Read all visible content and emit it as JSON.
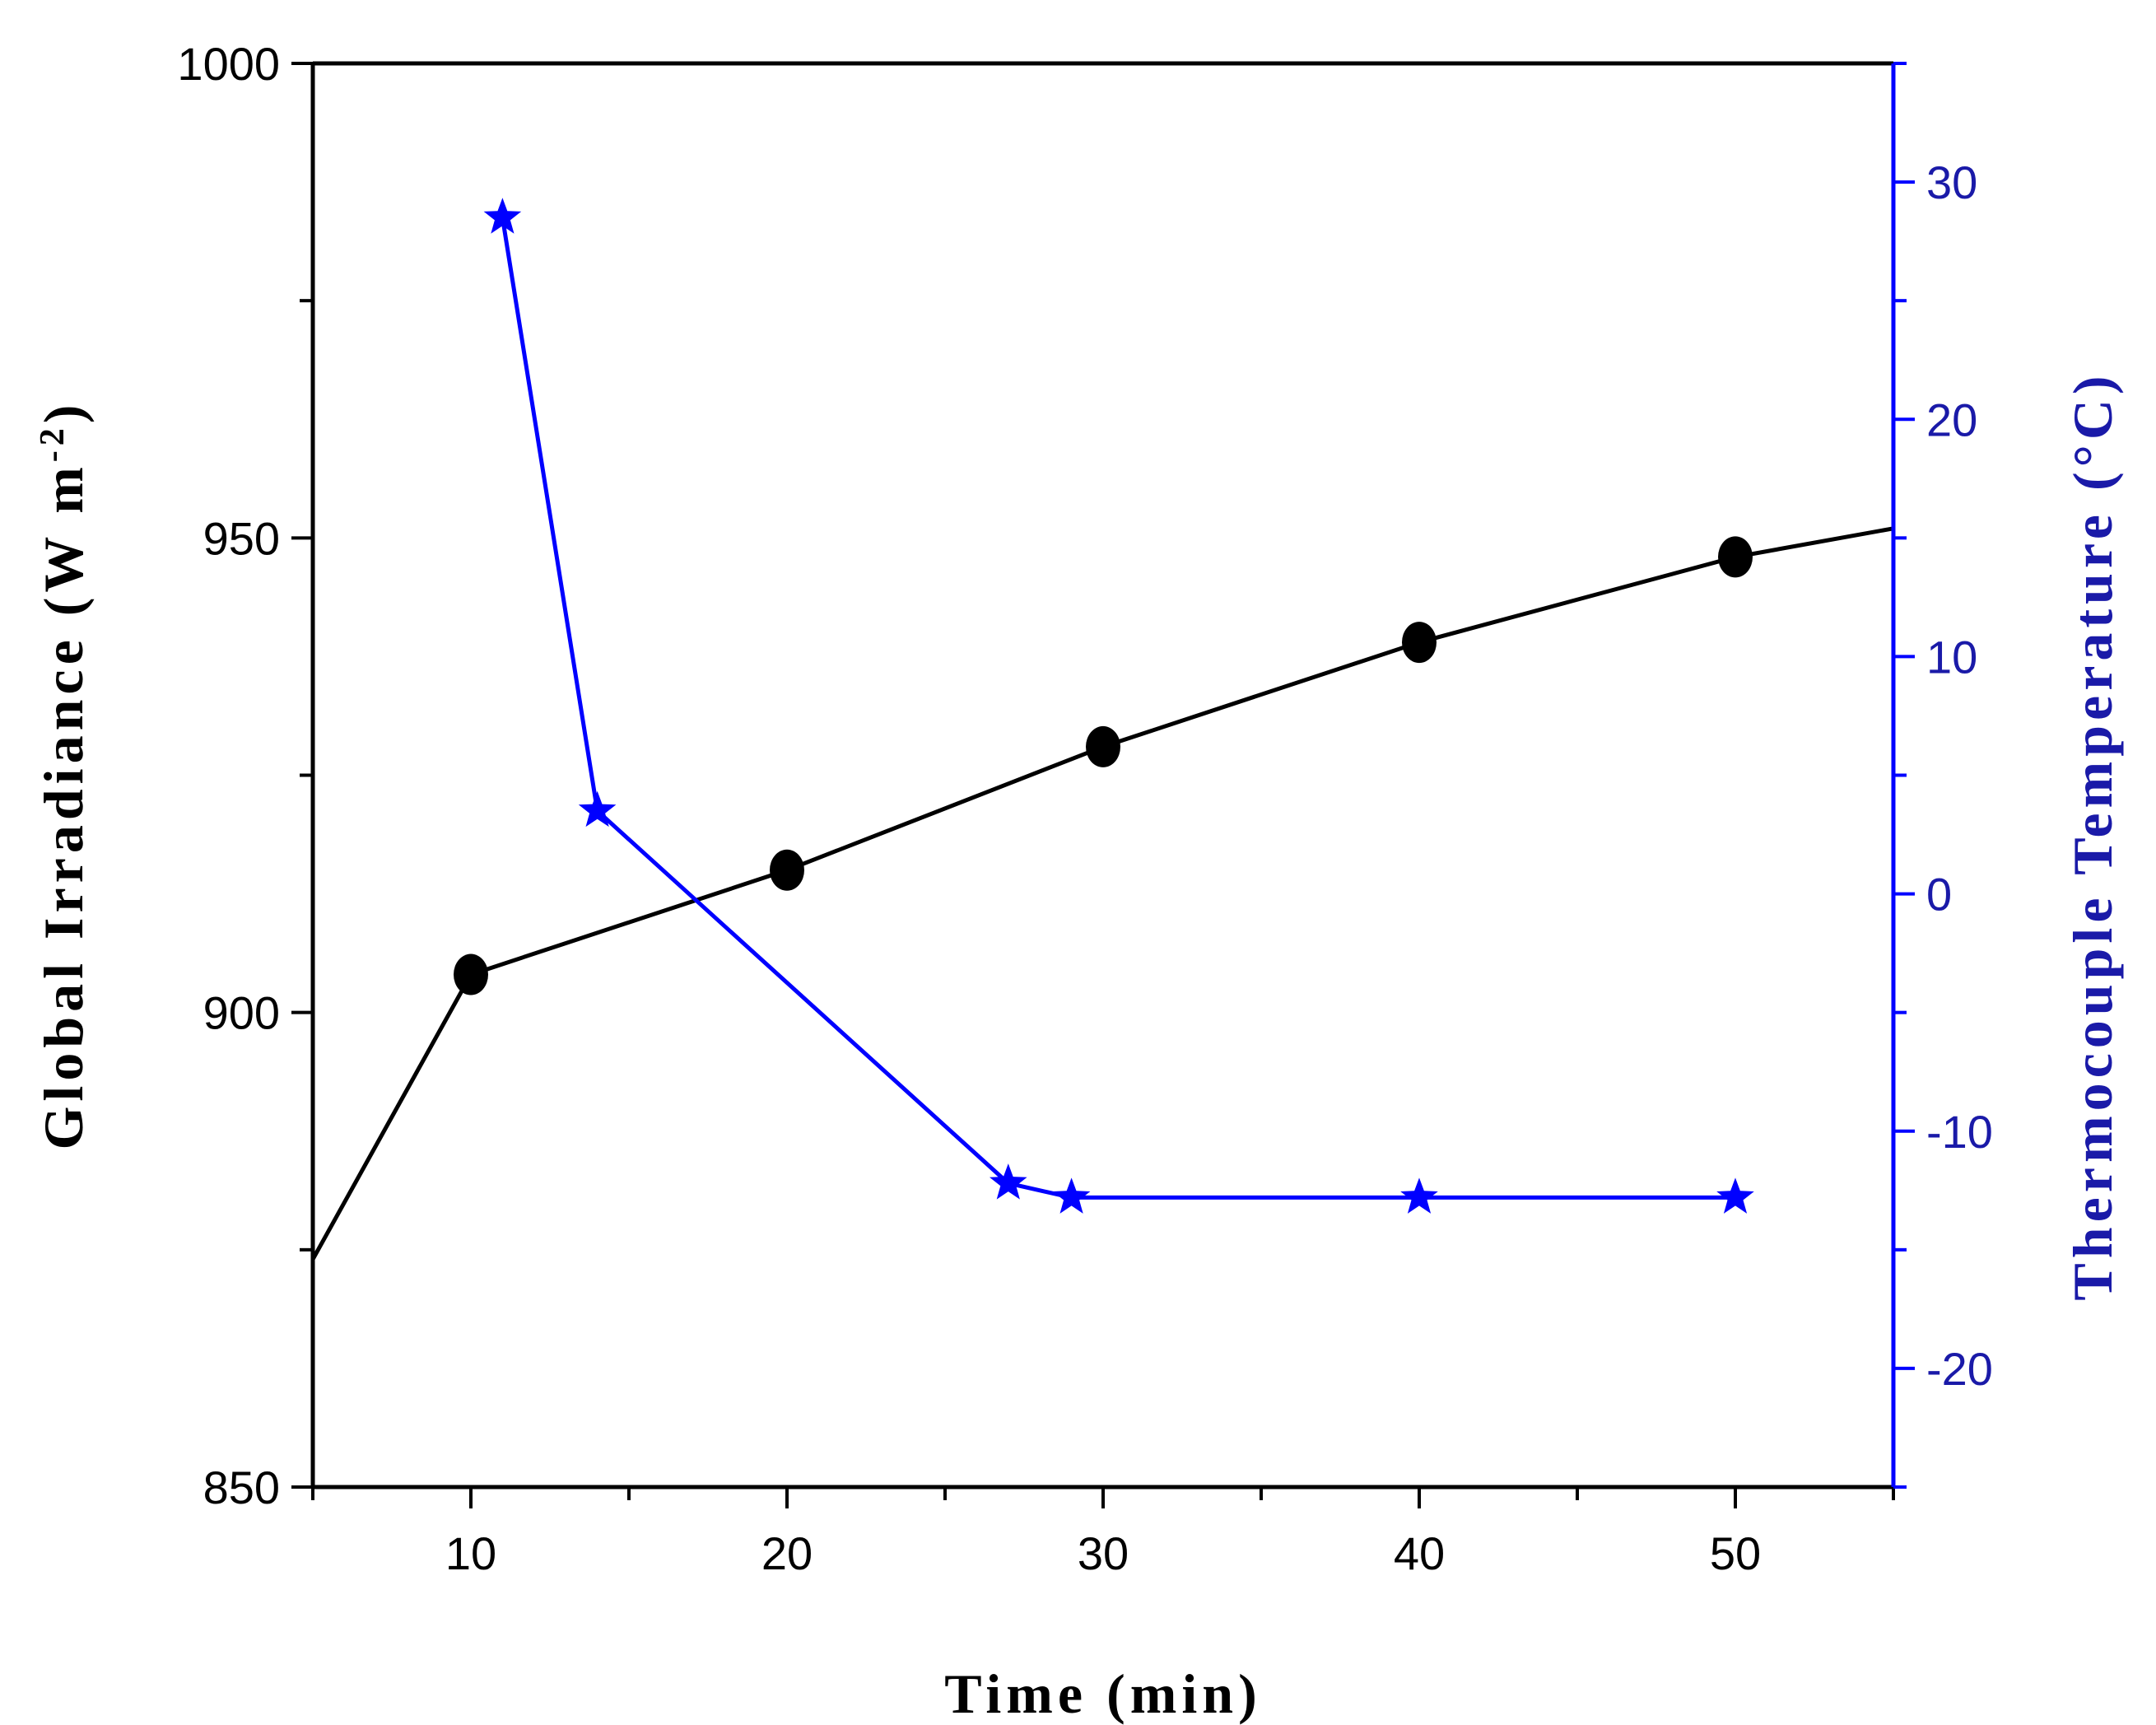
{
  "chart_data": {
    "type": "line",
    "xlabel": "Time (min)",
    "x_ticks": [
      10,
      20,
      30,
      40,
      50
    ],
    "xlim": [
      5,
      55
    ],
    "y_left": {
      "label": "Global Irradiance (W m",
      "label_sup": "-2",
      "label_close": ")",
      "ticks": [
        850,
        900,
        950,
        1000
      ],
      "ylim": [
        850,
        1000
      ],
      "color": "#000000"
    },
    "y_right": {
      "label": "Thermocouple Temperature (°C)",
      "ticks": [
        -20,
        -10,
        0,
        10,
        20,
        30
      ],
      "ylim": [
        -25,
        35
      ],
      "color": "#0000ff"
    },
    "series": [
      {
        "name": "Global Irradiance",
        "axis": "left",
        "marker": "circle",
        "color": "#000000",
        "x": [
          5,
          10,
          20,
          30,
          40,
          50,
          55
        ],
        "y": [
          874,
          904,
          915,
          928,
          939,
          948,
          951
        ],
        "marked": [
          false,
          true,
          true,
          true,
          true,
          true,
          false
        ]
      },
      {
        "name": "Thermocouple Temperature",
        "axis": "right",
        "marker": "star",
        "color": "#0000ff",
        "x": [
          11,
          14,
          27,
          29,
          40,
          50
        ],
        "y": [
          28.5,
          3.5,
          -12.2,
          -12.8,
          -12.8,
          -12.8
        ],
        "marked": [
          true,
          true,
          true,
          true,
          true,
          true
        ]
      }
    ]
  }
}
